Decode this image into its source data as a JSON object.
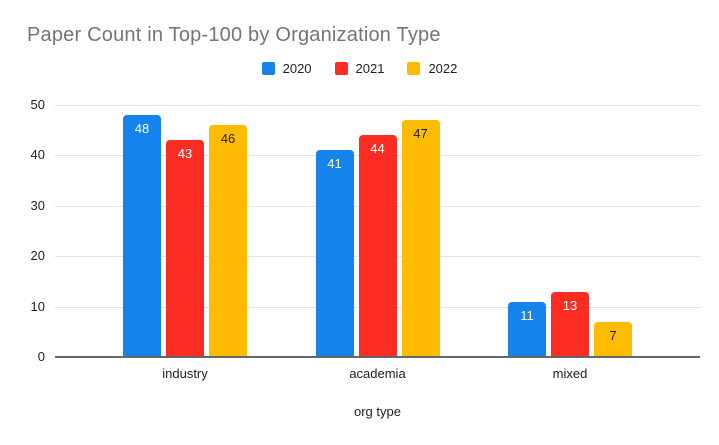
{
  "chart_data": {
    "type": "bar",
    "title": "Paper Count in Top-100 by Organization Type",
    "xlabel": "org type",
    "ylabel": "",
    "categories": [
      "industry",
      "academia",
      "mixed"
    ],
    "series": [
      {
        "name": "2020",
        "color": "#1583EC",
        "label_color": "#FFFFFF",
        "values": [
          48,
          41,
          11
        ]
      },
      {
        "name": "2021",
        "color": "#FB2D22",
        "label_color": "#FFFFFF",
        "values": [
          43,
          44,
          13
        ]
      },
      {
        "name": "2022",
        "color": "#FFBB00",
        "label_color": "#1F1F1F",
        "values": [
          46,
          47,
          7
        ]
      }
    ],
    "ylim": [
      0,
      50
    ],
    "y_ticks": [
      0,
      10,
      20,
      30,
      40,
      50
    ],
    "grid": true,
    "data_labels": true,
    "legend_position": "top-center"
  },
  "style": {
    "title_color": "#757575",
    "gridline_color": "#E3E3E3",
    "axis_line_color": "#666666",
    "tick_label_color": "#1F1F1F",
    "category_label_color": "#1F1F1F",
    "axis_title_color": "#1F1F1F",
    "legend_label_color": "#1F1F1F",
    "background": "#FFFFFF"
  }
}
